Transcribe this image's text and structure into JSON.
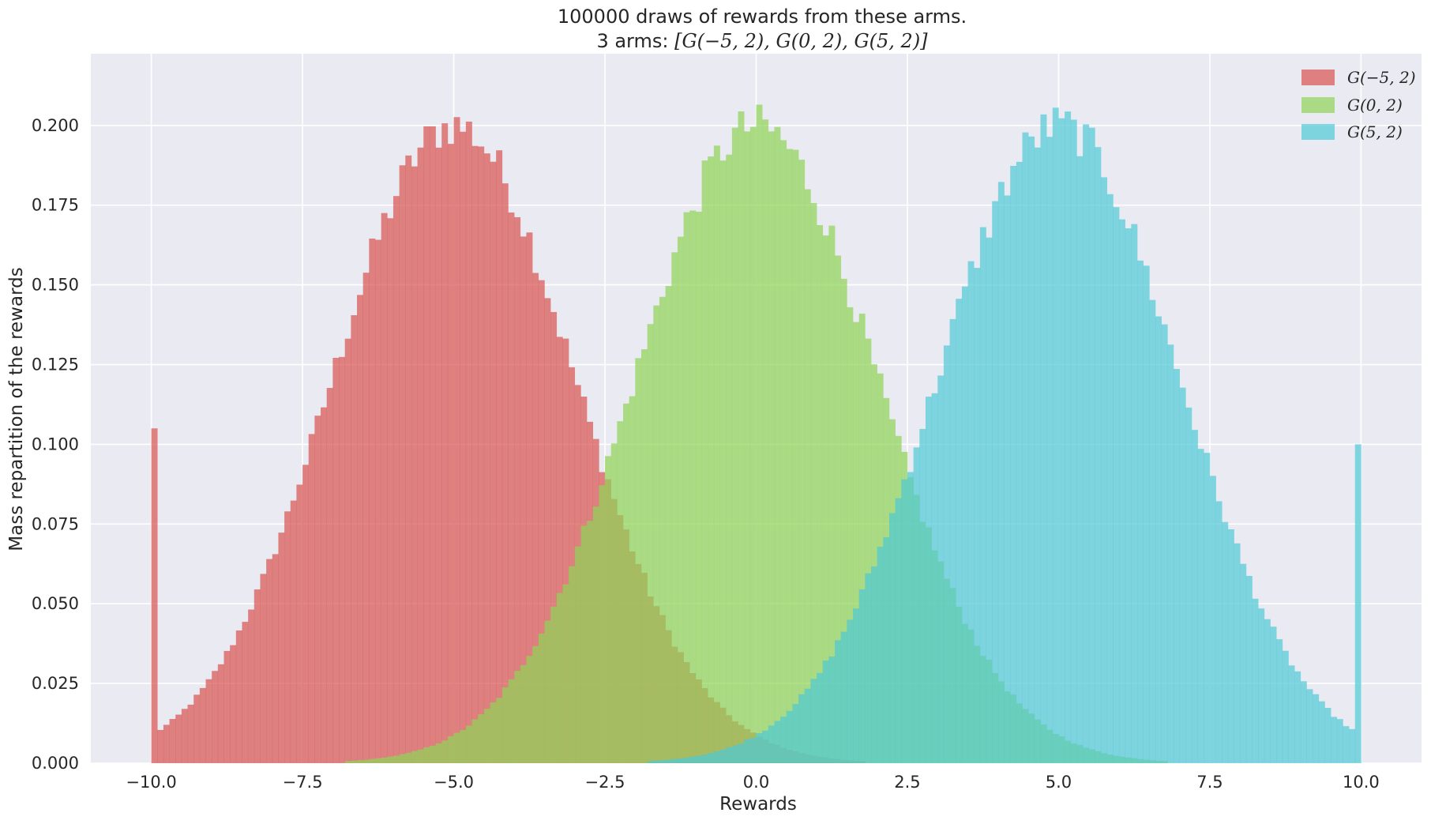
{
  "chart_data": {
    "type": "histogram",
    "title_line1": "100000 draws of rewards from these arms.",
    "title_line2_prefix": "3 arms: ",
    "title_line2_math": "[G(−5, 2), G(0, 2), G(5, 2)]",
    "xlabel": "Rewards",
    "ylabel": "Mass repartition of the rewards",
    "xlim": [
      -11.0,
      11.0
    ],
    "ylim": [
      0.0,
      0.2225
    ],
    "xticks": [
      -10.0,
      -7.5,
      -5.0,
      -2.5,
      0.0,
      2.5,
      5.0,
      7.5,
      10.0
    ],
    "xtick_labels": [
      "−10.0",
      "−7.5",
      "−5.0",
      "−2.5",
      "0.0",
      "2.5",
      "5.0",
      "7.5",
      "10.0"
    ],
    "yticks": [
      0.0,
      0.025,
      0.05,
      0.075,
      0.1,
      0.125,
      0.15,
      0.175,
      0.2
    ],
    "ytick_labels": [
      "0.000",
      "0.025",
      "0.050",
      "0.075",
      "0.100",
      "0.125",
      "0.150",
      "0.175",
      "0.200"
    ],
    "grid": true,
    "legend_position": "top-right",
    "bins": 200,
    "range": [
      -10.0,
      10.0
    ],
    "alpha": 0.7,
    "series": [
      {
        "name": "G(−5, 2)",
        "mean": -5,
        "std": 2,
        "color": "#d9534f",
        "peak_density": 0.2,
        "clip_low_density": 0.105,
        "clip_high_density": 0.0
      },
      {
        "name": "G(0, 2)",
        "mean": 0,
        "std": 2,
        "color": "#8fd456",
        "peak_density": 0.2,
        "clip_low_density": 0.0,
        "clip_high_density": 0.0
      },
      {
        "name": "G(5, 2)",
        "mean": 5,
        "std": 2,
        "color": "#4fc9d6",
        "peak_density": 0.2,
        "clip_low_density": 0.0,
        "clip_high_density": 0.1
      }
    ]
  },
  "colors": {
    "axes_background": "#eaeaf2",
    "grid": "#ffffff",
    "text": "#262626"
  }
}
